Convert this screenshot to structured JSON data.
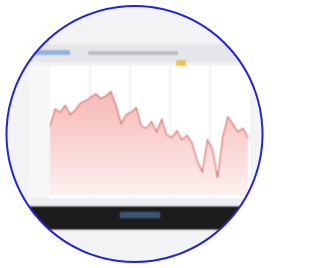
{
  "chart_data": {
    "type": "line",
    "color": "#d9534f",
    "values": [
      60,
      75,
      72,
      78,
      70,
      74,
      80,
      82,
      85,
      88,
      84,
      86,
      90,
      78,
      62,
      70,
      72,
      76,
      60,
      58,
      64,
      55,
      66,
      52,
      50,
      56,
      48,
      52,
      45,
      30,
      20,
      48,
      40,
      15,
      50,
      68,
      62,
      55,
      58,
      50
    ],
    "ylim": [
      0,
      100
    ]
  }
}
